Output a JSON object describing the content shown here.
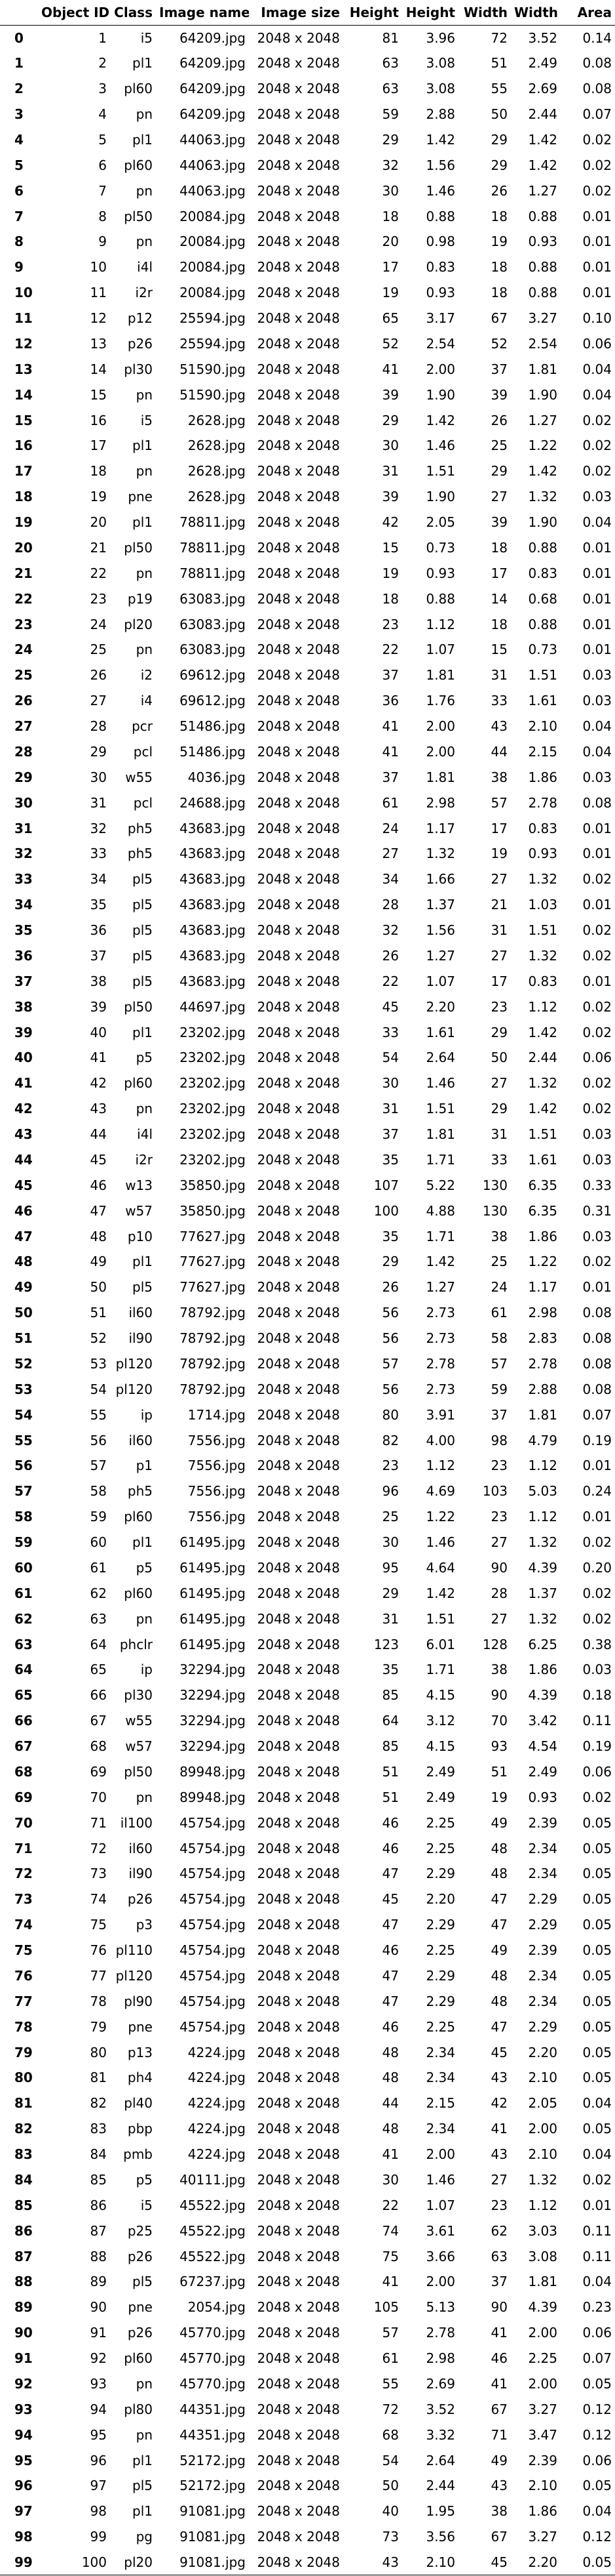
{
  "table": {
    "headers": [
      "",
      "Object ID",
      "Class",
      "Image name",
      "Image size",
      "Height",
      "Height",
      "Width",
      "Width",
      "Area"
    ],
    "rows": [
      [
        "0",
        "1",
        "i5",
        "64209.jpg",
        "2048 x 2048",
        "81",
        "3.96",
        "72",
        "3.52",
        "0.14"
      ],
      [
        "1",
        "2",
        "pl1",
        "64209.jpg",
        "2048 x 2048",
        "63",
        "3.08",
        "51",
        "2.49",
        "0.08"
      ],
      [
        "2",
        "3",
        "pl60",
        "64209.jpg",
        "2048 x 2048",
        "63",
        "3.08",
        "55",
        "2.69",
        "0.08"
      ],
      [
        "3",
        "4",
        "pn",
        "64209.jpg",
        "2048 x 2048",
        "59",
        "2.88",
        "50",
        "2.44",
        "0.07"
      ],
      [
        "4",
        "5",
        "pl1",
        "44063.jpg",
        "2048 x 2048",
        "29",
        "1.42",
        "29",
        "1.42",
        "0.02"
      ],
      [
        "5",
        "6",
        "pl60",
        "44063.jpg",
        "2048 x 2048",
        "32",
        "1.56",
        "29",
        "1.42",
        "0.02"
      ],
      [
        "6",
        "7",
        "pn",
        "44063.jpg",
        "2048 x 2048",
        "30",
        "1.46",
        "26",
        "1.27",
        "0.02"
      ],
      [
        "7",
        "8",
        "pl50",
        "20084.jpg",
        "2048 x 2048",
        "18",
        "0.88",
        "18",
        "0.88",
        "0.01"
      ],
      [
        "8",
        "9",
        "pn",
        "20084.jpg",
        "2048 x 2048",
        "20",
        "0.98",
        "19",
        "0.93",
        "0.01"
      ],
      [
        "9",
        "10",
        "i4l",
        "20084.jpg",
        "2048 x 2048",
        "17",
        "0.83",
        "18",
        "0.88",
        "0.01"
      ],
      [
        "10",
        "11",
        "i2r",
        "20084.jpg",
        "2048 x 2048",
        "19",
        "0.93",
        "18",
        "0.88",
        "0.01"
      ],
      [
        "11",
        "12",
        "p12",
        "25594.jpg",
        "2048 x 2048",
        "65",
        "3.17",
        "67",
        "3.27",
        "0.10"
      ],
      [
        "12",
        "13",
        "p26",
        "25594.jpg",
        "2048 x 2048",
        "52",
        "2.54",
        "52",
        "2.54",
        "0.06"
      ],
      [
        "13",
        "14",
        "pl30",
        "51590.jpg",
        "2048 x 2048",
        "41",
        "2.00",
        "37",
        "1.81",
        "0.04"
      ],
      [
        "14",
        "15",
        "pn",
        "51590.jpg",
        "2048 x 2048",
        "39",
        "1.90",
        "39",
        "1.90",
        "0.04"
      ],
      [
        "15",
        "16",
        "i5",
        "2628.jpg",
        "2048 x 2048",
        "29",
        "1.42",
        "26",
        "1.27",
        "0.02"
      ],
      [
        "16",
        "17",
        "pl1",
        "2628.jpg",
        "2048 x 2048",
        "30",
        "1.46",
        "25",
        "1.22",
        "0.02"
      ],
      [
        "17",
        "18",
        "pn",
        "2628.jpg",
        "2048 x 2048",
        "31",
        "1.51",
        "29",
        "1.42",
        "0.02"
      ],
      [
        "18",
        "19",
        "pne",
        "2628.jpg",
        "2048 x 2048",
        "39",
        "1.90",
        "27",
        "1.32",
        "0.03"
      ],
      [
        "19",
        "20",
        "pl1",
        "78811.jpg",
        "2048 x 2048",
        "42",
        "2.05",
        "39",
        "1.90",
        "0.04"
      ],
      [
        "20",
        "21",
        "pl50",
        "78811.jpg",
        "2048 x 2048",
        "15",
        "0.73",
        "18",
        "0.88",
        "0.01"
      ],
      [
        "21",
        "22",
        "pn",
        "78811.jpg",
        "2048 x 2048",
        "19",
        "0.93",
        "17",
        "0.83",
        "0.01"
      ],
      [
        "22",
        "23",
        "p19",
        "63083.jpg",
        "2048 x 2048",
        "18",
        "0.88",
        "14",
        "0.68",
        "0.01"
      ],
      [
        "23",
        "24",
        "pl20",
        "63083.jpg",
        "2048 x 2048",
        "23",
        "1.12",
        "18",
        "0.88",
        "0.01"
      ],
      [
        "24",
        "25",
        "pn",
        "63083.jpg",
        "2048 x 2048",
        "22",
        "1.07",
        "15",
        "0.73",
        "0.01"
      ],
      [
        "25",
        "26",
        "i2",
        "69612.jpg",
        "2048 x 2048",
        "37",
        "1.81",
        "31",
        "1.51",
        "0.03"
      ],
      [
        "26",
        "27",
        "i4",
        "69612.jpg",
        "2048 x 2048",
        "36",
        "1.76",
        "33",
        "1.61",
        "0.03"
      ],
      [
        "27",
        "28",
        "pcr",
        "51486.jpg",
        "2048 x 2048",
        "41",
        "2.00",
        "43",
        "2.10",
        "0.04"
      ],
      [
        "28",
        "29",
        "pcl",
        "51486.jpg",
        "2048 x 2048",
        "41",
        "2.00",
        "44",
        "2.15",
        "0.04"
      ],
      [
        "29",
        "30",
        "w55",
        "4036.jpg",
        "2048 x 2048",
        "37",
        "1.81",
        "38",
        "1.86",
        "0.03"
      ],
      [
        "30",
        "31",
        "pcl",
        "24688.jpg",
        "2048 x 2048",
        "61",
        "2.98",
        "57",
        "2.78",
        "0.08"
      ],
      [
        "31",
        "32",
        "ph5",
        "43683.jpg",
        "2048 x 2048",
        "24",
        "1.17",
        "17",
        "0.83",
        "0.01"
      ],
      [
        "32",
        "33",
        "ph5",
        "43683.jpg",
        "2048 x 2048",
        "27",
        "1.32",
        "19",
        "0.93",
        "0.01"
      ],
      [
        "33",
        "34",
        "pl5",
        "43683.jpg",
        "2048 x 2048",
        "34",
        "1.66",
        "27",
        "1.32",
        "0.02"
      ],
      [
        "34",
        "35",
        "pl5",
        "43683.jpg",
        "2048 x 2048",
        "28",
        "1.37",
        "21",
        "1.03",
        "0.01"
      ],
      [
        "35",
        "36",
        "pl5",
        "43683.jpg",
        "2048 x 2048",
        "32",
        "1.56",
        "31",
        "1.51",
        "0.02"
      ],
      [
        "36",
        "37",
        "pl5",
        "43683.jpg",
        "2048 x 2048",
        "26",
        "1.27",
        "27",
        "1.32",
        "0.02"
      ],
      [
        "37",
        "38",
        "pl5",
        "43683.jpg",
        "2048 x 2048",
        "22",
        "1.07",
        "17",
        "0.83",
        "0.01"
      ],
      [
        "38",
        "39",
        "pl50",
        "44697.jpg",
        "2048 x 2048",
        "45",
        "2.20",
        "23",
        "1.12",
        "0.02"
      ],
      [
        "39",
        "40",
        "pl1",
        "23202.jpg",
        "2048 x 2048",
        "33",
        "1.61",
        "29",
        "1.42",
        "0.02"
      ],
      [
        "40",
        "41",
        "p5",
        "23202.jpg",
        "2048 x 2048",
        "54",
        "2.64",
        "50",
        "2.44",
        "0.06"
      ],
      [
        "41",
        "42",
        "pl60",
        "23202.jpg",
        "2048 x 2048",
        "30",
        "1.46",
        "27",
        "1.32",
        "0.02"
      ],
      [
        "42",
        "43",
        "pn",
        "23202.jpg",
        "2048 x 2048",
        "31",
        "1.51",
        "29",
        "1.42",
        "0.02"
      ],
      [
        "43",
        "44",
        "i4l",
        "23202.jpg",
        "2048 x 2048",
        "37",
        "1.81",
        "31",
        "1.51",
        "0.03"
      ],
      [
        "44",
        "45",
        "i2r",
        "23202.jpg",
        "2048 x 2048",
        "35",
        "1.71",
        "33",
        "1.61",
        "0.03"
      ],
      [
        "45",
        "46",
        "w13",
        "35850.jpg",
        "2048 x 2048",
        "107",
        "5.22",
        "130",
        "6.35",
        "0.33"
      ],
      [
        "46",
        "47",
        "w57",
        "35850.jpg",
        "2048 x 2048",
        "100",
        "4.88",
        "130",
        "6.35",
        "0.31"
      ],
      [
        "47",
        "48",
        "p10",
        "77627.jpg",
        "2048 x 2048",
        "35",
        "1.71",
        "38",
        "1.86",
        "0.03"
      ],
      [
        "48",
        "49",
        "pl1",
        "77627.jpg",
        "2048 x 2048",
        "29",
        "1.42",
        "25",
        "1.22",
        "0.02"
      ],
      [
        "49",
        "50",
        "pl5",
        "77627.jpg",
        "2048 x 2048",
        "26",
        "1.27",
        "24",
        "1.17",
        "0.01"
      ],
      [
        "50",
        "51",
        "il60",
        "78792.jpg",
        "2048 x 2048",
        "56",
        "2.73",
        "61",
        "2.98",
        "0.08"
      ],
      [
        "51",
        "52",
        "il90",
        "78792.jpg",
        "2048 x 2048",
        "56",
        "2.73",
        "58",
        "2.83",
        "0.08"
      ],
      [
        "52",
        "53",
        "pl120",
        "78792.jpg",
        "2048 x 2048",
        "57",
        "2.78",
        "57",
        "2.78",
        "0.08"
      ],
      [
        "53",
        "54",
        "pl120",
        "78792.jpg",
        "2048 x 2048",
        "56",
        "2.73",
        "59",
        "2.88",
        "0.08"
      ],
      [
        "54",
        "55",
        "ip",
        "1714.jpg",
        "2048 x 2048",
        "80",
        "3.91",
        "37",
        "1.81",
        "0.07"
      ],
      [
        "55",
        "56",
        "il60",
        "7556.jpg",
        "2048 x 2048",
        "82",
        "4.00",
        "98",
        "4.79",
        "0.19"
      ],
      [
        "56",
        "57",
        "p1",
        "7556.jpg",
        "2048 x 2048",
        "23",
        "1.12",
        "23",
        "1.12",
        "0.01"
      ],
      [
        "57",
        "58",
        "ph5",
        "7556.jpg",
        "2048 x 2048",
        "96",
        "4.69",
        "103",
        "5.03",
        "0.24"
      ],
      [
        "58",
        "59",
        "pl60",
        "7556.jpg",
        "2048 x 2048",
        "25",
        "1.22",
        "23",
        "1.12",
        "0.01"
      ],
      [
        "59",
        "60",
        "pl1",
        "61495.jpg",
        "2048 x 2048",
        "30",
        "1.46",
        "27",
        "1.32",
        "0.02"
      ],
      [
        "60",
        "61",
        "p5",
        "61495.jpg",
        "2048 x 2048",
        "95",
        "4.64",
        "90",
        "4.39",
        "0.20"
      ],
      [
        "61",
        "62",
        "pl60",
        "61495.jpg",
        "2048 x 2048",
        "29",
        "1.42",
        "28",
        "1.37",
        "0.02"
      ],
      [
        "62",
        "63",
        "pn",
        "61495.jpg",
        "2048 x 2048",
        "31",
        "1.51",
        "27",
        "1.32",
        "0.02"
      ],
      [
        "63",
        "64",
        "phclr",
        "61495.jpg",
        "2048 x 2048",
        "123",
        "6.01",
        "128",
        "6.25",
        "0.38"
      ],
      [
        "64",
        "65",
        "ip",
        "32294.jpg",
        "2048 x 2048",
        "35",
        "1.71",
        "38",
        "1.86",
        "0.03"
      ],
      [
        "65",
        "66",
        "pl30",
        "32294.jpg",
        "2048 x 2048",
        "85",
        "4.15",
        "90",
        "4.39",
        "0.18"
      ],
      [
        "66",
        "67",
        "w55",
        "32294.jpg",
        "2048 x 2048",
        "64",
        "3.12",
        "70",
        "3.42",
        "0.11"
      ],
      [
        "67",
        "68",
        "w57",
        "32294.jpg",
        "2048 x 2048",
        "85",
        "4.15",
        "93",
        "4.54",
        "0.19"
      ],
      [
        "68",
        "69",
        "pl50",
        "89948.jpg",
        "2048 x 2048",
        "51",
        "2.49",
        "51",
        "2.49",
        "0.06"
      ],
      [
        "69",
        "70",
        "pn",
        "89948.jpg",
        "2048 x 2048",
        "51",
        "2.49",
        "19",
        "0.93",
        "0.02"
      ],
      [
        "70",
        "71",
        "il100",
        "45754.jpg",
        "2048 x 2048",
        "46",
        "2.25",
        "49",
        "2.39",
        "0.05"
      ],
      [
        "71",
        "72",
        "il60",
        "45754.jpg",
        "2048 x 2048",
        "46",
        "2.25",
        "48",
        "2.34",
        "0.05"
      ],
      [
        "72",
        "73",
        "il90",
        "45754.jpg",
        "2048 x 2048",
        "47",
        "2.29",
        "48",
        "2.34",
        "0.05"
      ],
      [
        "73",
        "74",
        "p26",
        "45754.jpg",
        "2048 x 2048",
        "45",
        "2.20",
        "47",
        "2.29",
        "0.05"
      ],
      [
        "74",
        "75",
        "p3",
        "45754.jpg",
        "2048 x 2048",
        "47",
        "2.29",
        "47",
        "2.29",
        "0.05"
      ],
      [
        "75",
        "76",
        "pl110",
        "45754.jpg",
        "2048 x 2048",
        "46",
        "2.25",
        "49",
        "2.39",
        "0.05"
      ],
      [
        "76",
        "77",
        "pl120",
        "45754.jpg",
        "2048 x 2048",
        "47",
        "2.29",
        "48",
        "2.34",
        "0.05"
      ],
      [
        "77",
        "78",
        "pl90",
        "45754.jpg",
        "2048 x 2048",
        "47",
        "2.29",
        "48",
        "2.34",
        "0.05"
      ],
      [
        "78",
        "79",
        "pne",
        "45754.jpg",
        "2048 x 2048",
        "46",
        "2.25",
        "47",
        "2.29",
        "0.05"
      ],
      [
        "79",
        "80",
        "p13",
        "4224.jpg",
        "2048 x 2048",
        "48",
        "2.34",
        "45",
        "2.20",
        "0.05"
      ],
      [
        "80",
        "81",
        "ph4",
        "4224.jpg",
        "2048 x 2048",
        "48",
        "2.34",
        "43",
        "2.10",
        "0.05"
      ],
      [
        "81",
        "82",
        "pl40",
        "4224.jpg",
        "2048 x 2048",
        "44",
        "2.15",
        "42",
        "2.05",
        "0.04"
      ],
      [
        "82",
        "83",
        "pbp",
        "4224.jpg",
        "2048 x 2048",
        "48",
        "2.34",
        "41",
        "2.00",
        "0.05"
      ],
      [
        "83",
        "84",
        "pmb",
        "4224.jpg",
        "2048 x 2048",
        "41",
        "2.00",
        "43",
        "2.10",
        "0.04"
      ],
      [
        "84",
        "85",
        "p5",
        "40111.jpg",
        "2048 x 2048",
        "30",
        "1.46",
        "27",
        "1.32",
        "0.02"
      ],
      [
        "85",
        "86",
        "i5",
        "45522.jpg",
        "2048 x 2048",
        "22",
        "1.07",
        "23",
        "1.12",
        "0.01"
      ],
      [
        "86",
        "87",
        "p25",
        "45522.jpg",
        "2048 x 2048",
        "74",
        "3.61",
        "62",
        "3.03",
        "0.11"
      ],
      [
        "87",
        "88",
        "p26",
        "45522.jpg",
        "2048 x 2048",
        "75",
        "3.66",
        "63",
        "3.08",
        "0.11"
      ],
      [
        "88",
        "89",
        "pl5",
        "67237.jpg",
        "2048 x 2048",
        "41",
        "2.00",
        "37",
        "1.81",
        "0.04"
      ],
      [
        "89",
        "90",
        "pne",
        "2054.jpg",
        "2048 x 2048",
        "105",
        "5.13",
        "90",
        "4.39",
        "0.23"
      ],
      [
        "90",
        "91",
        "p26",
        "45770.jpg",
        "2048 x 2048",
        "57",
        "2.78",
        "41",
        "2.00",
        "0.06"
      ],
      [
        "91",
        "92",
        "pl60",
        "45770.jpg",
        "2048 x 2048",
        "61",
        "2.98",
        "46",
        "2.25",
        "0.07"
      ],
      [
        "92",
        "93",
        "pn",
        "45770.jpg",
        "2048 x 2048",
        "55",
        "2.69",
        "41",
        "2.00",
        "0.05"
      ],
      [
        "93",
        "94",
        "pl80",
        "44351.jpg",
        "2048 x 2048",
        "72",
        "3.52",
        "67",
        "3.27",
        "0.12"
      ],
      [
        "94",
        "95",
        "pn",
        "44351.jpg",
        "2048 x 2048",
        "68",
        "3.32",
        "71",
        "3.47",
        "0.12"
      ],
      [
        "95",
        "96",
        "pl1",
        "52172.jpg",
        "2048 x 2048",
        "54",
        "2.64",
        "49",
        "2.39",
        "0.06"
      ],
      [
        "96",
        "97",
        "pl5",
        "52172.jpg",
        "2048 x 2048",
        "50",
        "2.44",
        "43",
        "2.10",
        "0.05"
      ],
      [
        "97",
        "98",
        "pl1",
        "91081.jpg",
        "2048 x 2048",
        "40",
        "1.95",
        "38",
        "1.86",
        "0.04"
      ],
      [
        "98",
        "99",
        "pg",
        "91081.jpg",
        "2048 x 2048",
        "73",
        "3.56",
        "67",
        "3.27",
        "0.12"
      ],
      [
        "99",
        "100",
        "pl20",
        "91081.jpg",
        "2048 x 2048",
        "43",
        "2.10",
        "45",
        "2.20",
        "0.05"
      ]
    ]
  }
}
